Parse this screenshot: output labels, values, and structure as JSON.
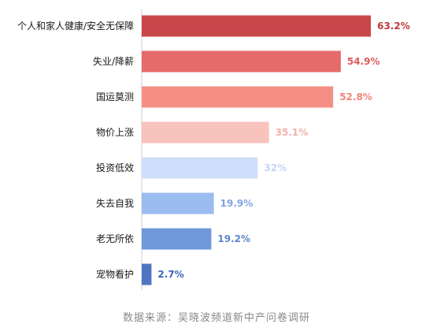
{
  "chart_data": {
    "type": "bar",
    "orientation": "horizontal",
    "categories": [
      "个人和家人健康/安全无保障",
      "失业/降薪",
      "国运莫测",
      "物价上涨",
      "投资低效",
      "失去自我",
      "老无所依",
      "宠物看护"
    ],
    "values": [
      63.2,
      54.9,
      52.8,
      35.1,
      32,
      19.9,
      19.2,
      2.7
    ],
    "value_labels": [
      "63.2%",
      "54.9%",
      "52.8%",
      "35.1%",
      "32%",
      "19.9%",
      "19.2%",
      "2.7%"
    ],
    "bar_colors": [
      "#c8474a",
      "#e66a6a",
      "#f58f86",
      "#f7c3bc",
      "#cddffa",
      "#9bbcef",
      "#6f98db",
      "#4f75c0"
    ],
    "label_colors": [
      "#c0393e",
      "#e05a5c",
      "#ee857b",
      "#f3b2a9",
      "#c3d6f5",
      "#7fa4e2",
      "#5d86cc",
      "#3f66b5"
    ],
    "xlim": [
      0,
      66
    ],
    "grid": false,
    "legend": "none"
  },
  "source_note": "数据来源：吴晓波频道新中产问卷调研"
}
